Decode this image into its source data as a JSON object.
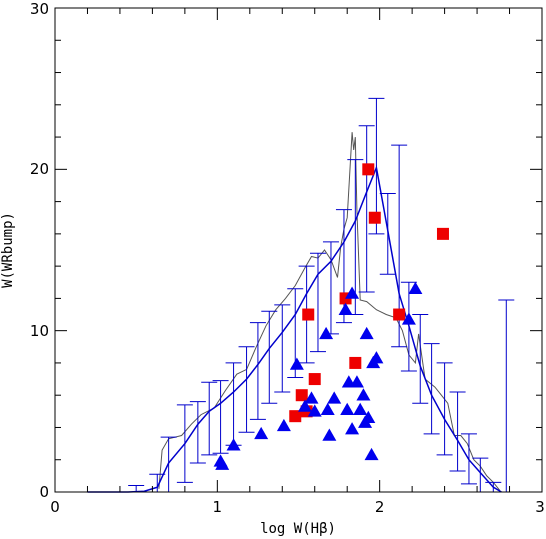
{
  "chart_data": {
    "type": "scatter",
    "title": "",
    "xlabel": "log W(Hβ)",
    "ylabel": "W(WRbump)",
    "xlim": [
      0,
      3
    ],
    "ylim": [
      0,
      30
    ],
    "xticks": [
      "0",
      "1",
      "2",
      "3"
    ],
    "yticks": [
      "0",
      "10",
      "20",
      "30"
    ],
    "grid": false,
    "colors": {
      "squares": "#ee0000",
      "triangles": "#0000ee",
      "model_line": "#0000cc",
      "gray_line": "#555555"
    },
    "series": [
      {
        "marker": "square",
        "points": [
          [
            1.48,
            4.7
          ],
          [
            1.52,
            6.0
          ],
          [
            1.55,
            5.0
          ],
          [
            1.56,
            11.0
          ],
          [
            1.6,
            7.0
          ],
          [
            1.79,
            12.0
          ],
          [
            1.85,
            8.0
          ],
          [
            1.93,
            20.0
          ],
          [
            1.97,
            17.0
          ],
          [
            2.12,
            11.0
          ],
          [
            2.39,
            16.0
          ]
        ]
      },
      {
        "marker": "triangle",
        "points": [
          [
            1.02,
            1.9
          ],
          [
            1.03,
            1.7
          ],
          [
            1.1,
            2.9
          ],
          [
            1.27,
            3.6
          ],
          [
            1.41,
            4.1
          ],
          [
            1.49,
            7.9
          ],
          [
            1.54,
            5.3
          ],
          [
            1.58,
            5.8
          ],
          [
            1.6,
            5.0
          ],
          [
            1.67,
            9.8
          ],
          [
            1.68,
            5.1
          ],
          [
            1.69,
            3.5
          ],
          [
            1.72,
            5.8
          ],
          [
            1.79,
            11.3
          ],
          [
            1.8,
            5.1
          ],
          [
            1.81,
            6.8
          ],
          [
            1.83,
            12.3
          ],
          [
            1.83,
            3.9
          ],
          [
            1.86,
            6.8
          ],
          [
            1.88,
            5.1
          ],
          [
            1.9,
            6.0
          ],
          [
            1.91,
            4.3
          ],
          [
            1.92,
            9.8
          ],
          [
            1.93,
            4.6
          ],
          [
            1.95,
            2.3
          ],
          [
            1.96,
            8.0
          ],
          [
            1.98,
            8.3
          ],
          [
            2.18,
            10.7
          ],
          [
            2.22,
            12.6
          ]
        ]
      }
    ],
    "model_line": [
      [
        0.2,
        0.0
      ],
      [
        0.45,
        0.0
      ],
      [
        0.55,
        0.05
      ],
      [
        0.63,
        0.3
      ],
      [
        0.7,
        1.8
      ],
      [
        0.8,
        3.0
      ],
      [
        0.88,
        4.2
      ],
      [
        0.95,
        5.0
      ],
      [
        1.02,
        5.5
      ],
      [
        1.1,
        6.2
      ],
      [
        1.18,
        7.0
      ],
      [
        1.25,
        7.9
      ],
      [
        1.32,
        8.9
      ],
      [
        1.4,
        9.9
      ],
      [
        1.48,
        11.0
      ],
      [
        1.55,
        12.3
      ],
      [
        1.62,
        13.5
      ],
      [
        1.7,
        14.3
      ],
      [
        1.78,
        15.5
      ],
      [
        1.85,
        16.8
      ],
      [
        1.92,
        18.6
      ],
      [
        1.98,
        20.1
      ],
      [
        2.05,
        16.2
      ],
      [
        2.12,
        12.3
      ],
      [
        2.18,
        10.3
      ],
      [
        2.25,
        7.8
      ],
      [
        2.32,
        6.0
      ],
      [
        2.4,
        4.5
      ],
      [
        2.48,
        3.2
      ],
      [
        2.55,
        2.0
      ],
      [
        2.62,
        1.2
      ],
      [
        2.7,
        0.3
      ],
      [
        2.75,
        0.0
      ]
    ],
    "error_bars": [
      [
        0.5,
        0.0,
        0.4
      ],
      [
        0.63,
        0.0,
        1.1
      ],
      [
        0.7,
        0.0,
        3.4
      ],
      [
        0.8,
        0.6,
        5.4
      ],
      [
        0.88,
        1.8,
        5.6
      ],
      [
        0.95,
        2.3,
        6.8
      ],
      [
        1.02,
        2.4,
        6.9
      ],
      [
        1.1,
        2.9,
        8.0
      ],
      [
        1.18,
        3.7,
        9.0
      ],
      [
        1.25,
        4.5,
        10.5
      ],
      [
        1.32,
        5.5,
        11.2
      ],
      [
        1.4,
        6.2,
        11.6
      ],
      [
        1.48,
        7.1,
        12.6
      ],
      [
        1.55,
        8.0,
        14.0
      ],
      [
        1.62,
        8.7,
        14.8
      ],
      [
        1.7,
        9.8,
        15.5
      ],
      [
        1.78,
        10.5,
        17.5
      ],
      [
        1.85,
        11.0,
        20.6
      ],
      [
        1.92,
        12.4,
        22.7
      ],
      [
        1.98,
        16.0,
        24.4
      ],
      [
        2.05,
        13.5,
        18.5
      ],
      [
        2.12,
        9.0,
        21.5
      ],
      [
        2.18,
        7.5,
        13.0
      ],
      [
        2.25,
        5.5,
        11.0
      ],
      [
        2.32,
        3.6,
        9.2
      ],
      [
        2.4,
        2.3,
        8.0
      ],
      [
        2.48,
        1.3,
        6.2
      ],
      [
        2.55,
        0.5,
        3.6
      ],
      [
        2.62,
        0.0,
        2.1
      ],
      [
        2.7,
        0.0,
        0.6
      ],
      [
        2.78,
        0.0,
        11.9
      ]
    ],
    "gray_line": [
      [
        0.64,
        0.2
      ],
      [
        0.66,
        2.6
      ],
      [
        0.7,
        3.3
      ],
      [
        0.78,
        3.5
      ],
      [
        0.84,
        4.2
      ],
      [
        0.9,
        4.8
      ],
      [
        0.98,
        5.2
      ],
      [
        1.05,
        6.3
      ],
      [
        1.12,
        7.3
      ],
      [
        1.18,
        7.6
      ],
      [
        1.24,
        9.0
      ],
      [
        1.3,
        10.3
      ],
      [
        1.36,
        11.3
      ],
      [
        1.42,
        12.0
      ],
      [
        1.48,
        12.8
      ],
      [
        1.54,
        13.9
      ],
      [
        1.58,
        14.6
      ],
      [
        1.62,
        14.5
      ],
      [
        1.66,
        15.0
      ],
      [
        1.7,
        14.4
      ],
      [
        1.74,
        13.3
      ],
      [
        1.76,
        15.2
      ],
      [
        1.78,
        16.3
      ],
      [
        1.8,
        17.0
      ],
      [
        1.83,
        22.3
      ],
      [
        1.84,
        21.2
      ],
      [
        1.85,
        22.0
      ],
      [
        1.86,
        17.5
      ],
      [
        1.88,
        11.9
      ],
      [
        1.92,
        11.8
      ],
      [
        1.98,
        11.3
      ],
      [
        2.04,
        11.0
      ],
      [
        2.1,
        10.8
      ],
      [
        2.14,
        10.0
      ],
      [
        2.18,
        8.5
      ],
      [
        2.22,
        8.0
      ],
      [
        2.24,
        9.8
      ],
      [
        2.28,
        7.0
      ],
      [
        2.34,
        6.5
      ],
      [
        2.38,
        6.0
      ],
      [
        2.42,
        5.5
      ],
      [
        2.46,
        3.5
      ],
      [
        2.5,
        3.5
      ],
      [
        2.54,
        3.0
      ],
      [
        2.58,
        2.0
      ],
      [
        2.62,
        1.6
      ],
      [
        2.66,
        1.0
      ],
      [
        2.7,
        0.6
      ],
      [
        2.74,
        0.1
      ]
    ]
  }
}
